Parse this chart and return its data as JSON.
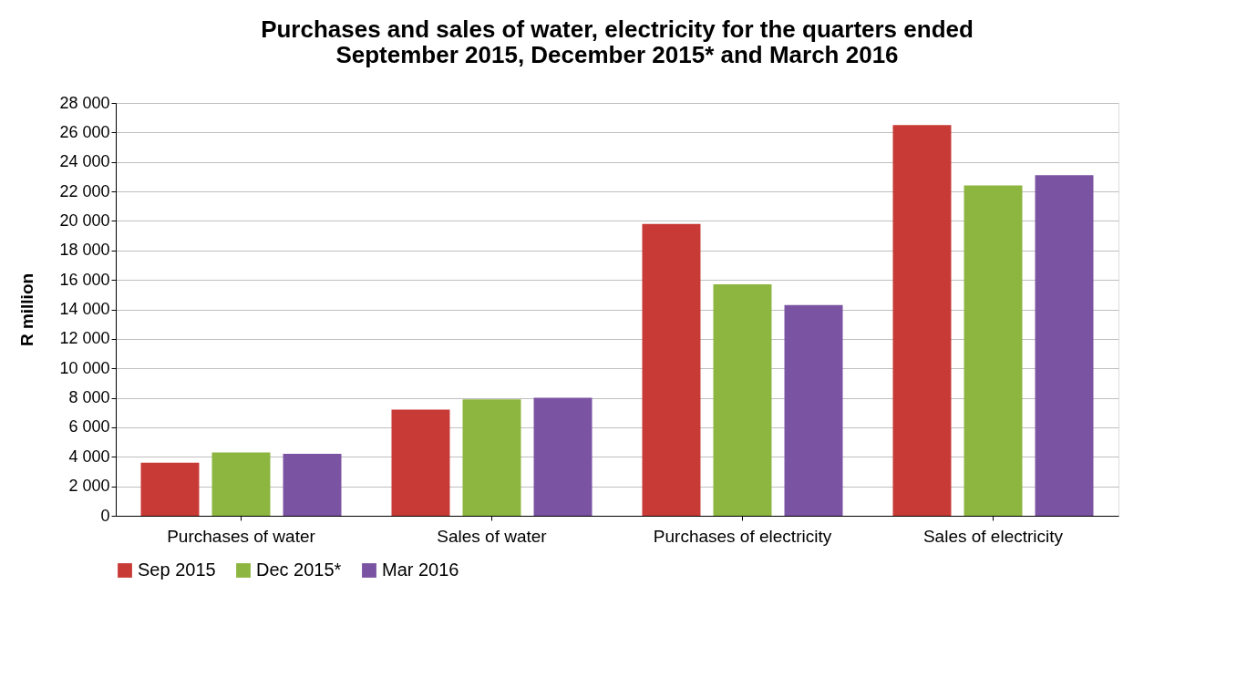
{
  "chart_data": {
    "type": "bar",
    "title": [
      "Purchases and sales of water, electricity for the quarters ended",
      "September 2015, December 2015* and March 2016"
    ],
    "ylabel": "R million",
    "categories": [
      "Purchases of water",
      "Sales of water",
      "Purchases of electricity",
      "Sales of electricity"
    ],
    "series": [
      {
        "name": "Sep 2015",
        "color": "#c83a36",
        "values": [
          3600,
          7200,
          19800,
          26500
        ]
      },
      {
        "name": "Dec 2015*",
        "color": "#8db640",
        "values": [
          4300,
          7900,
          15700,
          22400
        ]
      },
      {
        "name": "Mar 2016",
        "color": "#7a53a3",
        "values": [
          4200,
          8000,
          14300,
          23100
        ]
      }
    ],
    "ylim": [
      0,
      28000
    ],
    "yticks": [
      0,
      {
        "value": 2000,
        "label": "2 000"
      },
      {
        "value": 4000,
        "label": "4 000"
      },
      {
        "value": 6000,
        "label": "6 000"
      },
      {
        "value": 8000,
        "label": "8 000"
      },
      {
        "value": 10000,
        "label": "10 000"
      },
      {
        "value": 12000,
        "label": "12 000"
      },
      {
        "value": 14000,
        "label": "14 000"
      },
      {
        "value": 16000,
        "label": "16 000"
      },
      {
        "value": 18000,
        "label": "18 000"
      },
      {
        "value": 20000,
        "label": "20 000"
      },
      {
        "value": 22000,
        "label": "22 000"
      },
      {
        "value": 24000,
        "label": "24 000"
      },
      {
        "value": 26000,
        "label": "26 000"
      },
      {
        "value": 28000,
        "label": "28 000"
      }
    ],
    "grid": "y",
    "legend": "bottom"
  }
}
